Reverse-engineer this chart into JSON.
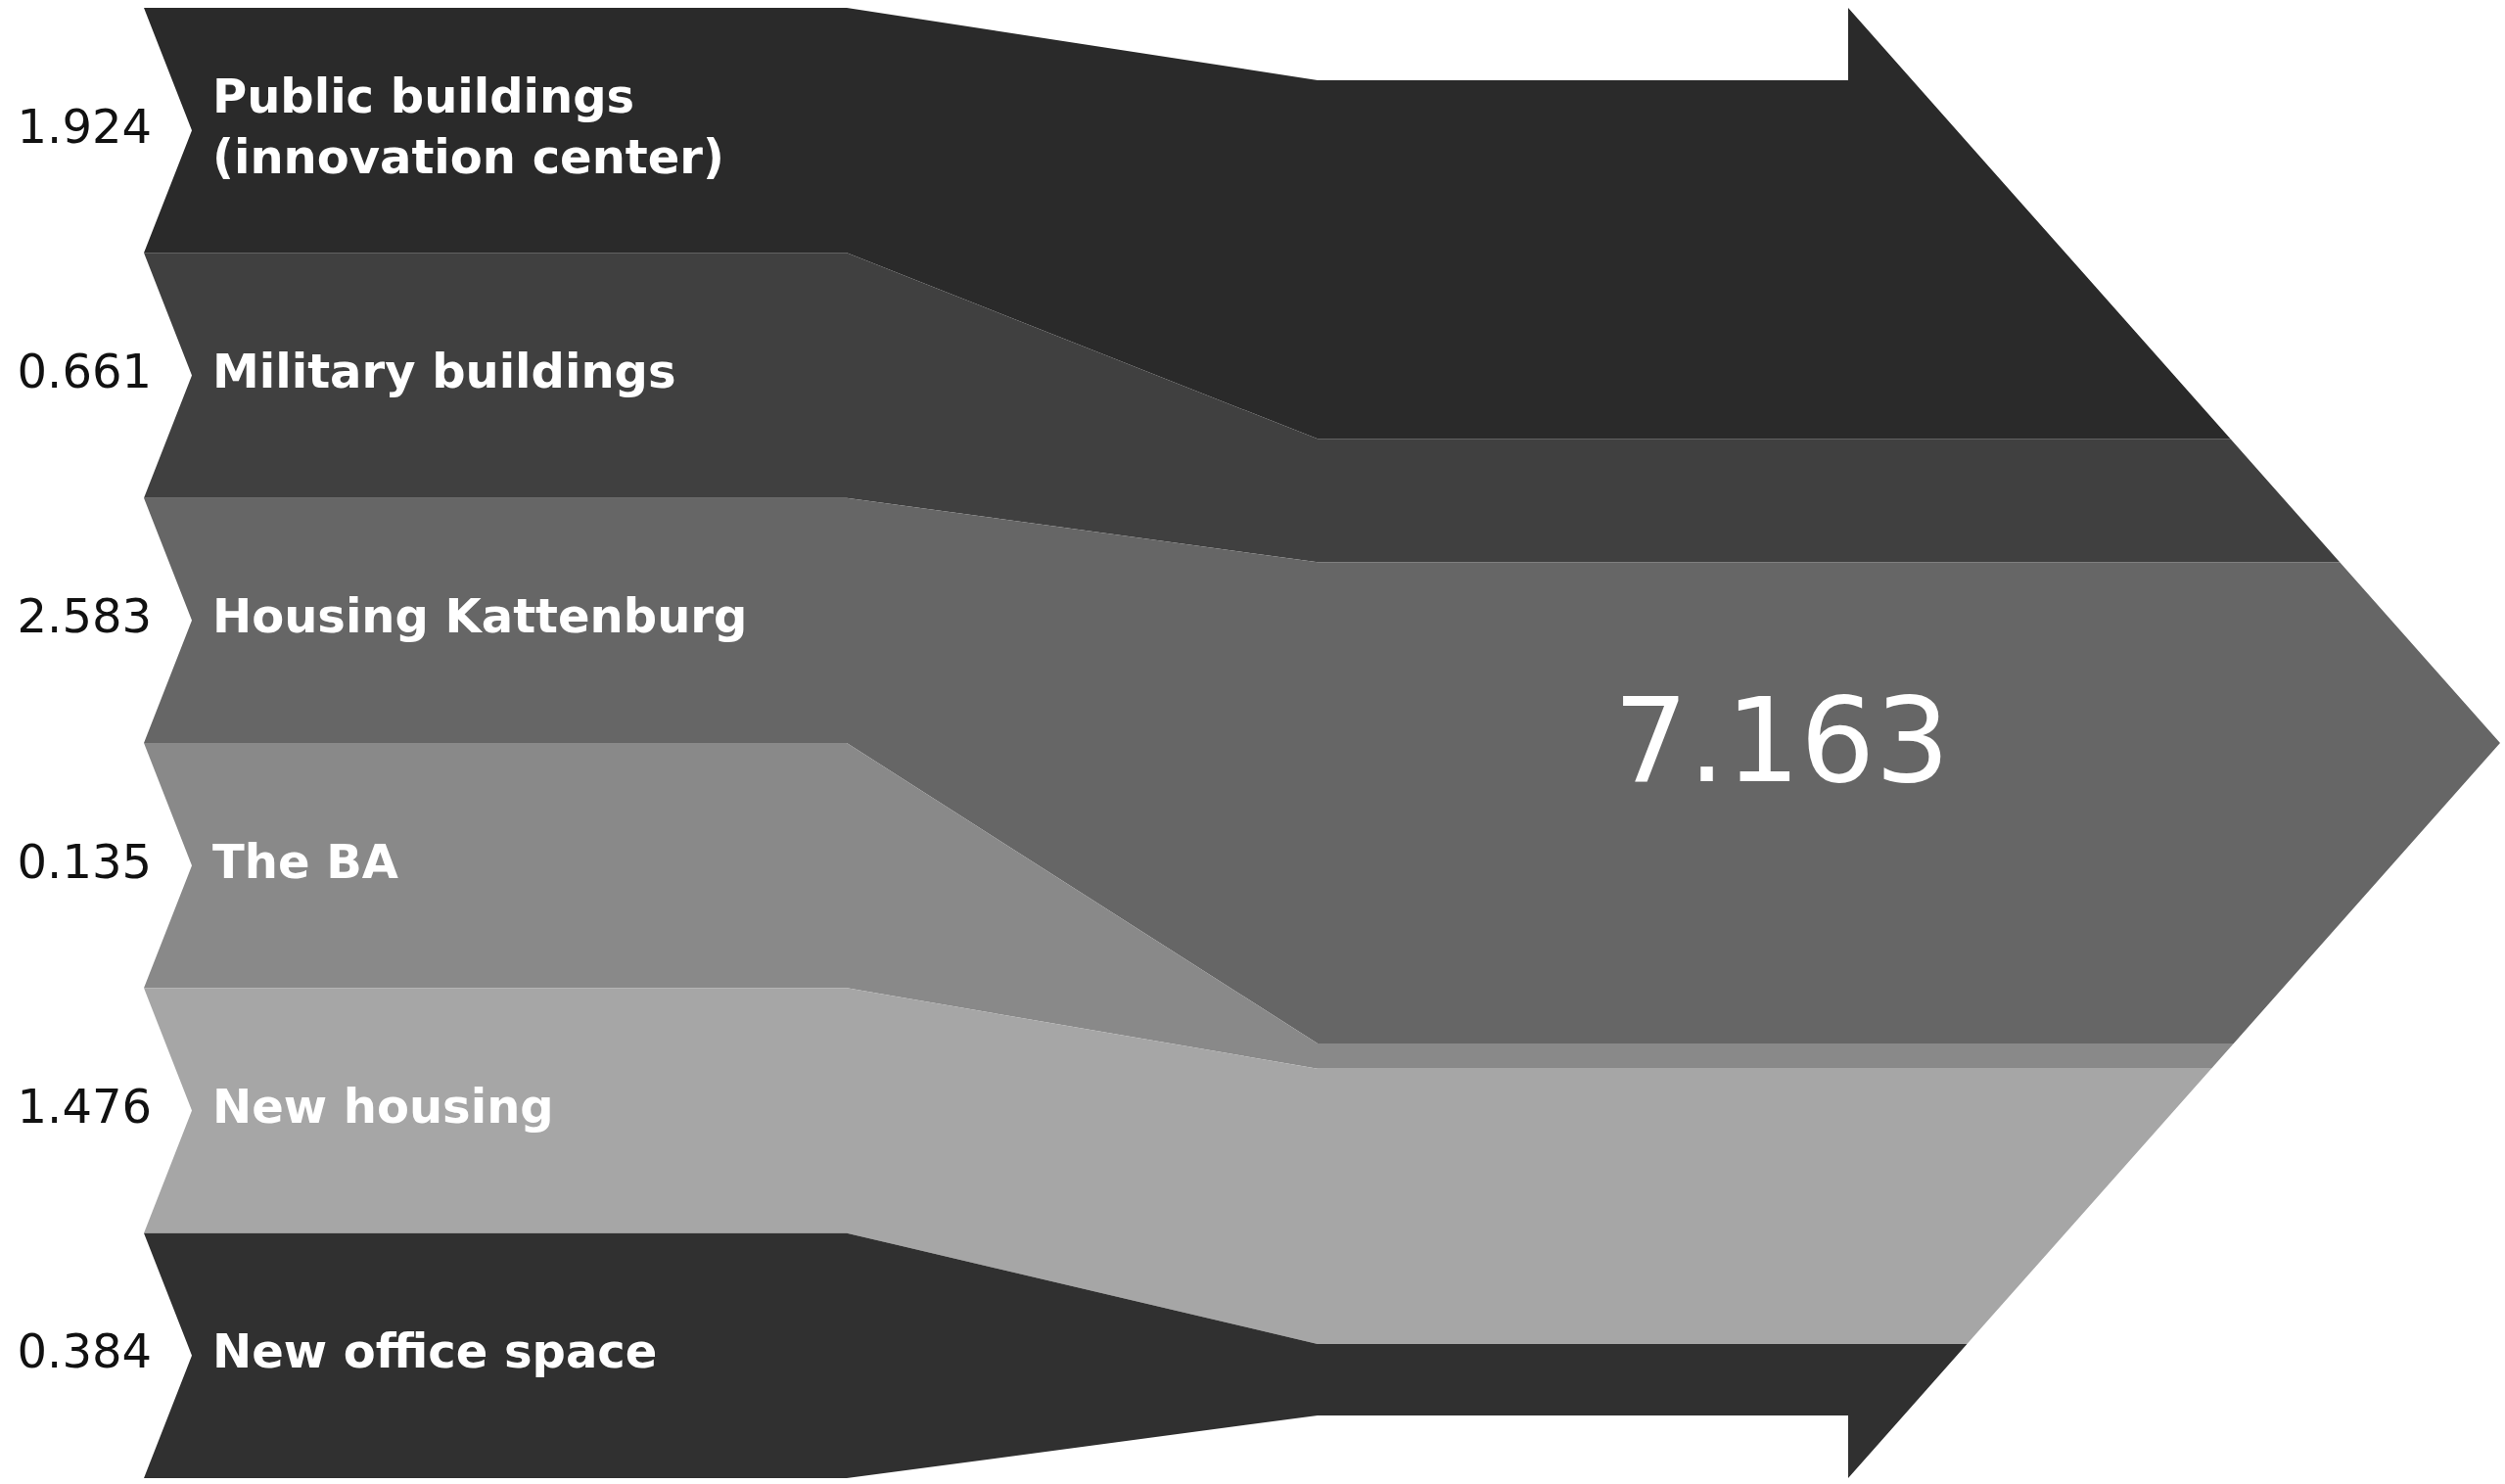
{
  "chart_data": {
    "type": "other",
    "categories": [
      "Public buildings (innovation center)",
      "Military buildings",
      "Housing Kattenburg",
      "The BA",
      "New housing",
      "New office space"
    ],
    "values": [
      1.924,
      0.661,
      2.583,
      0.135,
      1.476,
      0.384
    ],
    "colors": [
      "#2a2a2a",
      "#404040",
      "#666666",
      "#898989",
      "#a6a6a6",
      "#303030"
    ],
    "totals": [
      "7.163"
    ],
    "data_labels": true
  }
}
